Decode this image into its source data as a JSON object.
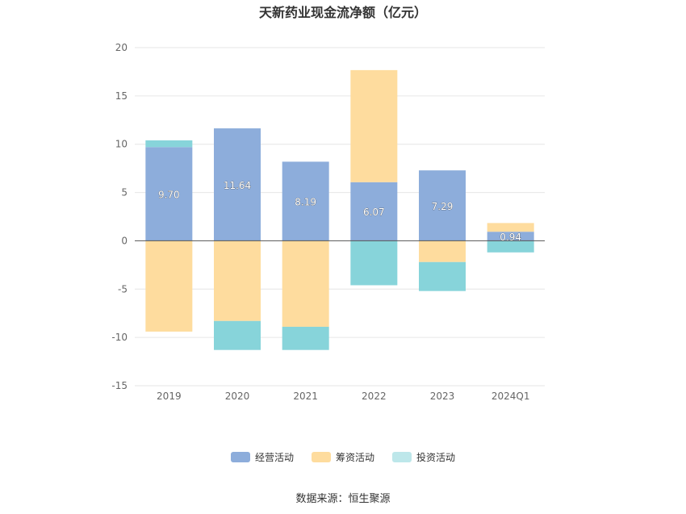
{
  "chart_data": {
    "type": "bar",
    "stacked": true,
    "title": "天新药业现金流净额（亿元）",
    "categories": [
      "2019",
      "2020",
      "2021",
      "2022",
      "2023",
      "2024Q1"
    ],
    "ylim": [
      -15,
      20
    ],
    "yticks": [
      "20",
      "15",
      "10",
      "5",
      "0",
      "-5",
      "-10",
      "-15"
    ],
    "grid": true,
    "legend_position": "bottom",
    "series": [
      {
        "name": "经营活动",
        "color": "#8daddb",
        "values": [
          9.7,
          11.64,
          8.19,
          6.07,
          7.29,
          0.94
        ]
      },
      {
        "name": "筹资活动",
        "color": "#fedc9e",
        "values": [
          -9.4,
          -8.3,
          -8.9,
          11.6,
          -2.2,
          0.9
        ]
      },
      {
        "name": "投资活动",
        "color": "#87d4da",
        "values": [
          0.7,
          -3.0,
          -2.4,
          -4.6,
          -3.0,
          -1.2
        ]
      }
    ],
    "data_labels": [
      "9.70",
      "11.64",
      "8.19",
      "6.07",
      "7.29",
      "0.94"
    ]
  },
  "legend": [
    {
      "label": "经营活动",
      "color": "#8daddb"
    },
    {
      "label": "筹资活动",
      "color": "#fedc9e"
    },
    {
      "label": "投资活动",
      "color": "#bde7ea"
    }
  ],
  "source": "数据来源：恒生聚源"
}
